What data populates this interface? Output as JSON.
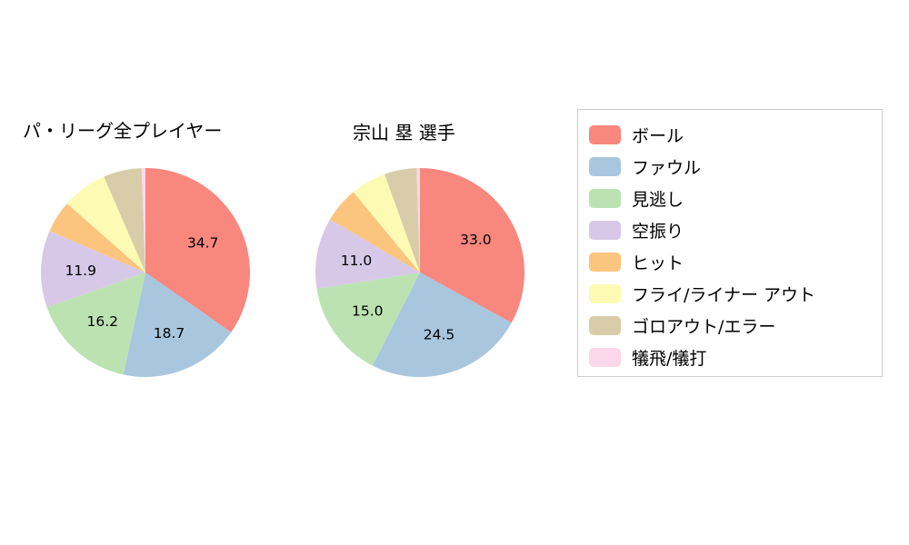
{
  "figure": {
    "background": "#ffffff",
    "text_color": "#000000"
  },
  "chart_data": [
    {
      "type": "pie",
      "title": "パ・リーグ全プレイヤー",
      "labels": [
        "ボール",
        "ファウル",
        "見逃し",
        "空振り",
        "ヒット",
        "フライ/ライナー アウト",
        "ゴロアウト/エラー",
        "犠飛/犠打"
      ],
      "values": [
        34.7,
        18.7,
        16.2,
        11.9,
        5.0,
        7.0,
        5.9,
        0.6
      ],
      "label_threshold": 10,
      "start_angle_deg": 90,
      "direction": "clockwise",
      "value_labels_shown": [
        "34.7",
        "18.7",
        "16.2",
        "11.9"
      ]
    },
    {
      "type": "pie",
      "title": "宗山 塁  選手",
      "labels": [
        "ボール",
        "ファウル",
        "見逃し",
        "空振り",
        "ヒット",
        "フライ/ライナー アウト",
        "ゴロアウト/エラー",
        "犠飛/犠打"
      ],
      "values": [
        33.0,
        24.5,
        15.0,
        11.0,
        5.5,
        5.5,
        5.0,
        0.5
      ],
      "label_threshold": 10,
      "start_angle_deg": 90,
      "direction": "clockwise",
      "value_labels_shown": [
        "33.0",
        "24.5",
        "15.0",
        "11.0"
      ]
    }
  ],
  "legend": {
    "position": "right",
    "items": [
      {
        "label": "ボール",
        "color": "#f8877e"
      },
      {
        "label": "ファウル",
        "color": "#a9c6df"
      },
      {
        "label": "見逃し",
        "color": "#bce2b2"
      },
      {
        "label": "空振り",
        "color": "#d8c8e7"
      },
      {
        "label": "ヒット",
        "color": "#fbc57f"
      },
      {
        "label": "フライ/ライナー アウト",
        "color": "#fdfab4"
      },
      {
        "label": "ゴロアウト/エラー",
        "color": "#d8cda8"
      },
      {
        "label": "犠飛/犠打",
        "color": "#fbd7e9"
      }
    ]
  }
}
